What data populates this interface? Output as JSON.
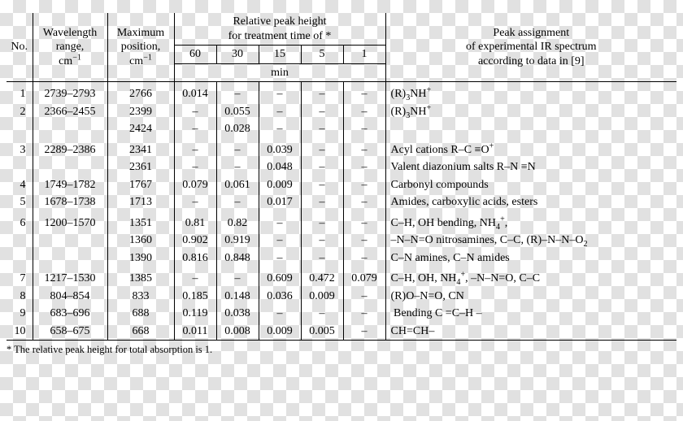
{
  "header": {
    "no": "No.",
    "wavelength_html": "Wavelength<br>range,<br>cm<sup>&minus;1</sup>",
    "maxpos_html": "Maximum<br>position,<br>cm<sup>&minus;1</sup>",
    "treatment_group": "Relative peak height<br>for treatment time of *",
    "treatment_times": [
      "60",
      "30",
      "15",
      "5",
      "1"
    ],
    "treatment_unit": "min",
    "assignment_html": "Peak assignment<br>of experimental IR spectrum<br>according to data in [9]"
  },
  "footnote": "* The relative peak height for total absorption is 1.",
  "rows": [
    {
      "no": "1",
      "wl": "2739–2793",
      "mp": "2766",
      "t": [
        "0.014",
        "–",
        "–",
        "–",
        "–"
      ],
      "asn_html": "(R)<sub>3</sub>NH<sup>+</sup>",
      "gap": true
    },
    {
      "no": "2",
      "wl": "2366–2455",
      "mp": "2399",
      "t": [
        "–",
        "0.055",
        "–",
        "–",
        "–"
      ],
      "asn_html": "(R)<sub>3</sub>NH<sup>+</sup>"
    },
    {
      "no": "",
      "wl": "",
      "mp": "2424",
      "t": [
        "–",
        "0.028",
        "–",
        "–",
        "–"
      ],
      "asn_html": ""
    },
    {
      "no": "3",
      "wl": "2289–2386",
      "mp": "2341",
      "t": [
        "–",
        "–",
        "0.039",
        "–",
        "–"
      ],
      "asn_html": "Acyl cations R–C ≡O<sup>+</sup>",
      "gap": true
    },
    {
      "no": "",
      "wl": "",
      "mp": "2361",
      "t": [
        "–",
        "–",
        "0.048",
        "–",
        "–"
      ],
      "asn_html": "Valent diazonium salts R–N ≡N"
    },
    {
      "no": "4",
      "wl": "1749–1782",
      "mp": "1767",
      "t": [
        "0.079",
        "0.061",
        "0.009",
        "–",
        "–"
      ],
      "asn_html": "Carbonyl compounds"
    },
    {
      "no": "5",
      "wl": "1678–1738",
      "mp": "1713",
      "t": [
        "–",
        "–",
        "0.017",
        "–",
        "–"
      ],
      "asn_html": "Amides, carboxylic acids, esters"
    },
    {
      "no": "6",
      "wl": "1200–1570",
      "mp": "1351",
      "t": [
        "0.81",
        "0.82",
        "–",
        "–",
        "–"
      ],
      "asn_html": "C–H, OH bending, NH<sub>4</sub><sup>+</sup>,",
      "gap": true
    },
    {
      "no": "",
      "wl": "",
      "mp": "1360",
      "t": [
        "0.902",
        "0.919",
        "–",
        "–",
        "–"
      ],
      "asn_html": "–N–N=O nitrosamines, C–C, (R)–N–N–O<sub>2</sub>"
    },
    {
      "no": "",
      "wl": "",
      "mp": "1390",
      "t": [
        "0.816",
        "0.848",
        "–",
        "–",
        "–"
      ],
      "asn_html": "C–N amines, C–N amides"
    },
    {
      "no": "7",
      "wl": "1217–1530",
      "mp": "1385",
      "t": [
        "–",
        "–",
        "0.609",
        "0.472",
        "0.079"
      ],
      "asn_html": "C–H, OH, NH<sub>4</sub><sup>+</sup>, –N–N=O, C–C",
      "gap": true
    },
    {
      "no": "8",
      "wl": "804–854",
      "mp": "833",
      "t": [
        "0.185",
        "0.148",
        "0.036",
        "0.009",
        "–"
      ],
      "asn_html": "(R)O–N=O, CN"
    },
    {
      "no": "9",
      "wl": "683–696",
      "mp": "688",
      "t": [
        "0.119",
        "0.038",
        "–",
        "–",
        "–"
      ],
      "asn_html": "&nbsp;Bending C =C–H –"
    },
    {
      "no": "10",
      "wl": "658–675",
      "mp": "668",
      "t": [
        "0.011",
        "0.008",
        "0.009",
        "0.005",
        "–"
      ],
      "asn_html": "CH=CH–"
    }
  ]
}
